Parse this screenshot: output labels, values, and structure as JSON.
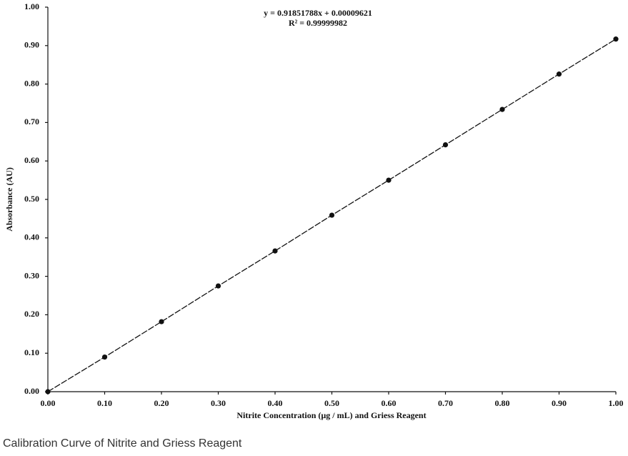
{
  "chart_data": {
    "type": "scatter",
    "annotations": [
      "y = 0.91851788x + 0.00009621",
      "R² = 0.99999982"
    ],
    "x_label": "Nitrite Concentration (µg / mL) and Griess Reagent",
    "y_label": "Absorbance (AU)",
    "x": [
      0,
      0.1,
      0.2,
      0.3,
      0.4,
      0.5,
      0.6,
      0.7,
      0.8,
      0.9,
      1.0
    ],
    "series": [
      {
        "color": "#111111",
        "line": true,
        "values": [
          0,
          0.09,
          0.182,
          0.275,
          0.366,
          0.459,
          0.55,
          0.642,
          0.734,
          0.826,
          0.917
        ]
      }
    ],
    "xlim": [
      0,
      1
    ],
    "ylim": [
      0,
      1
    ],
    "xticks": [
      {
        "value": 0,
        "label": "0.00"
      },
      {
        "value": 0.1,
        "label": "0.10"
      },
      {
        "value": 0.2,
        "label": "0.20"
      },
      {
        "value": 0.3,
        "label": "0.30"
      },
      {
        "value": 0.4,
        "label": "0.40"
      },
      {
        "value": 0.5,
        "label": "0.50"
      },
      {
        "value": 0.6,
        "label": "0.60"
      },
      {
        "value": 0.7,
        "label": "0.70"
      },
      {
        "value": 0.8,
        "label": "0.80"
      },
      {
        "value": 0.9,
        "label": "0.90"
      },
      {
        "value": 1,
        "label": "1.00"
      }
    ],
    "yticks": [
      {
        "value": 0,
        "label": "0.00"
      },
      {
        "value": 0.1,
        "label": "0.10"
      },
      {
        "value": 0.2,
        "label": "0.20"
      },
      {
        "value": 0.3,
        "label": "0.30"
      },
      {
        "value": 0.4,
        "label": "0.40"
      },
      {
        "value": 0.5,
        "label": "0.50"
      },
      {
        "value": 0.6,
        "label": "0.60"
      },
      {
        "value": 0.7,
        "label": "0.70"
      },
      {
        "value": 0.8,
        "label": "0.80"
      },
      {
        "value": 0.9,
        "label": "0.90"
      },
      {
        "value": 1,
        "label": "1.00"
      }
    ],
    "grid": false
  },
  "caption": "Calibration Curve of Nitrite and Griess Reagent"
}
